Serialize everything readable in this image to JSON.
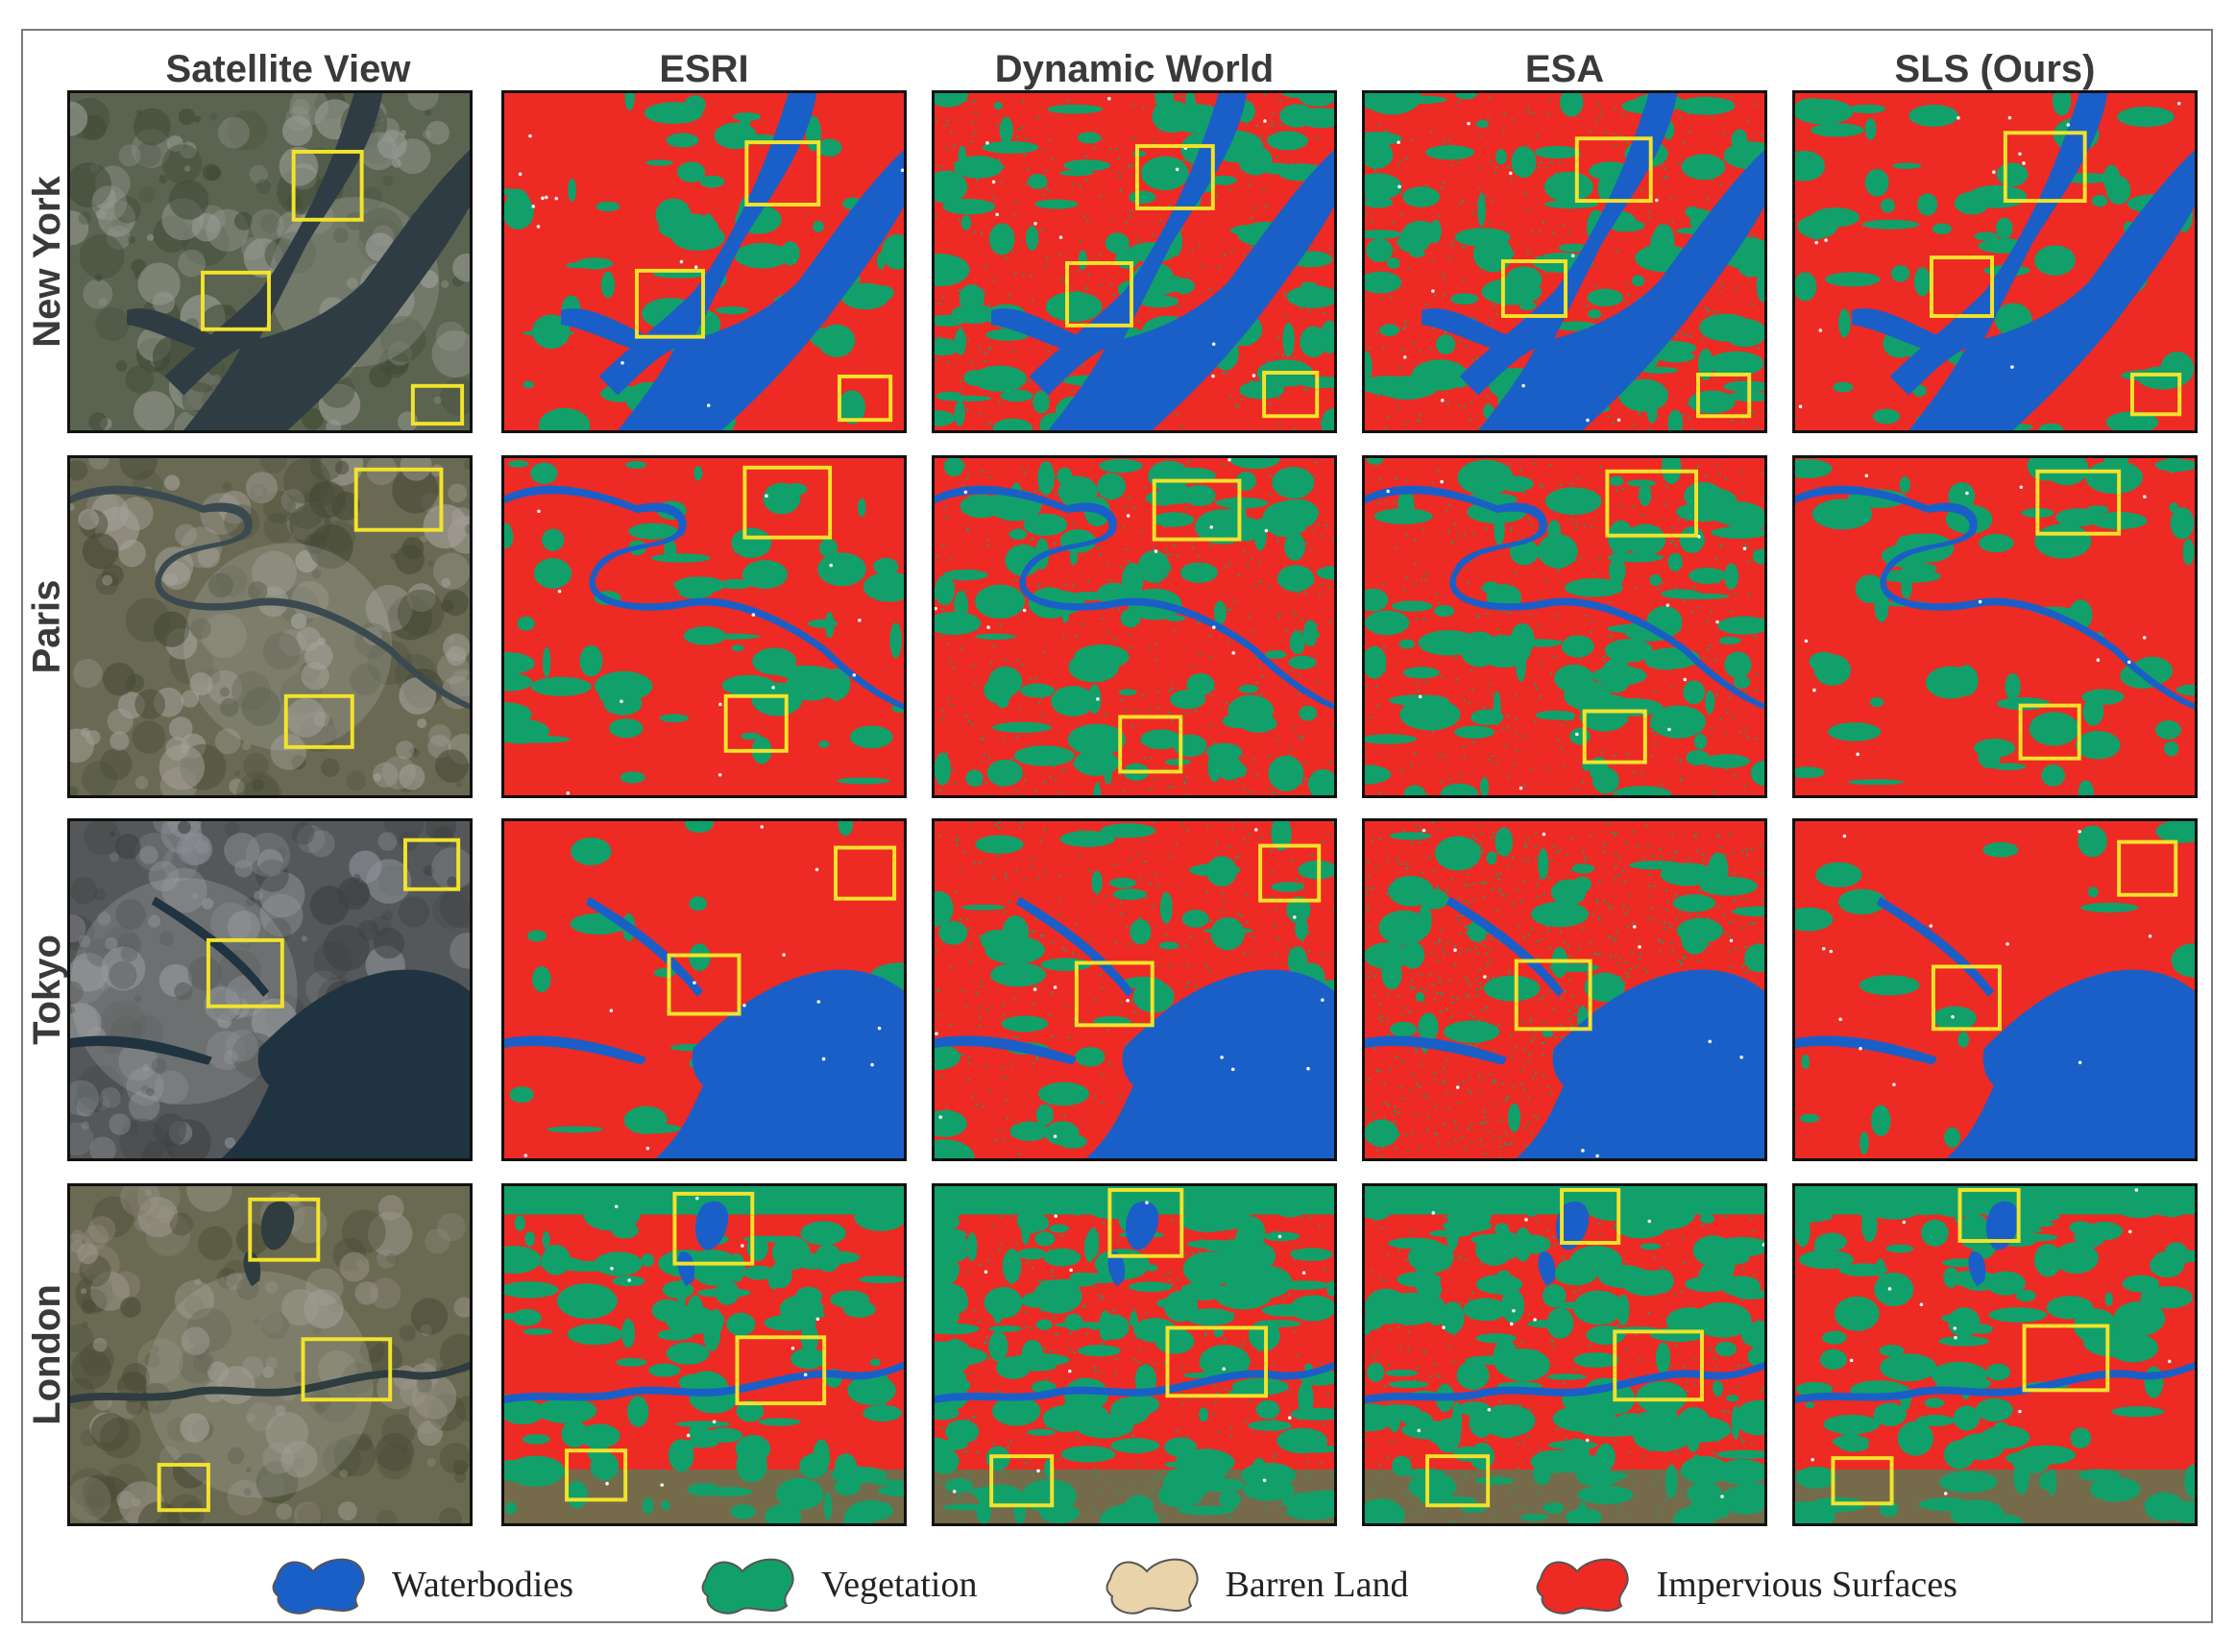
{
  "columns": [
    "Satellite View",
    "ESRI",
    "Dynamic World",
    "ESA",
    "SLS (Ours)"
  ],
  "rows": [
    "New York",
    "Paris",
    "Tokyo",
    "London"
  ],
  "legend": [
    {
      "label": "Waterbodies",
      "color": "#1a5fc8"
    },
    {
      "label": "Vegetation",
      "color": "#12a06a"
    },
    {
      "label": "Barren Land",
      "color": "#e9d3a8"
    },
    {
      "label": "Impervious Surfaces",
      "color": "#ee2a24"
    }
  ],
  "colors": {
    "water": "#1a5fc8",
    "vegetation": "#12a06a",
    "barren": "#e9d3a8",
    "impervious": "#ee2a24",
    "highlight_box": "#f2e32a"
  }
}
